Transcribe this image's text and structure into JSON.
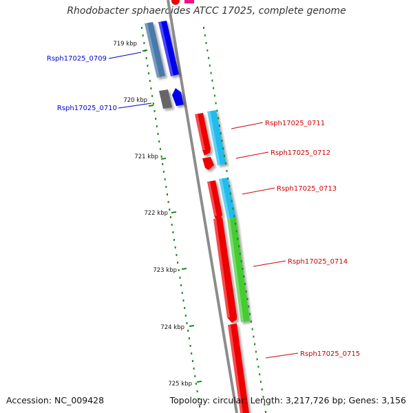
{
  "header": {
    "title": "Rhodobacter sphaeroides ATCC 17025, complete genome"
  },
  "footer": {
    "accession": "Accession: NC_009428",
    "summary": "Topology: circular; Length: 3,217,726 bp; Genes: 3,156"
  },
  "scale_ticks": [
    {
      "label": "719 kbp"
    },
    {
      "label": "720 kbp"
    },
    {
      "label": "721 kbp"
    },
    {
      "label": "722 kbp"
    },
    {
      "label": "723 kbp"
    },
    {
      "label": "724 kbp"
    },
    {
      "label": "725 kbp"
    }
  ],
  "gene_labels": [
    {
      "label": "Rsph17025_0709",
      "color": "#0000cc"
    },
    {
      "label": "Rsph17025_0710",
      "color": "#0000cc"
    },
    {
      "label": "Rsph17025_0711",
      "color": "#cc0000"
    },
    {
      "label": "Rsph17025_0712",
      "color": "#cc0000"
    },
    {
      "label": "Rsph17025_0713",
      "color": "#cc0000"
    },
    {
      "label": "Rsph17025_0714",
      "color": "#cc0000"
    },
    {
      "label": "Rsph17025_0715",
      "color": "#cc0000"
    }
  ],
  "colors": {
    "backbone": "#8c8c8c",
    "tick_green": "#1a8a1a",
    "gene_blue": "#0000ee",
    "gene_steel": "#4a78aa",
    "gene_gray": "#666666",
    "gene_red": "#ee0000",
    "gene_cyan": "#22bbee",
    "gene_green": "#44cc33",
    "gene_pink": "#ee1188"
  }
}
